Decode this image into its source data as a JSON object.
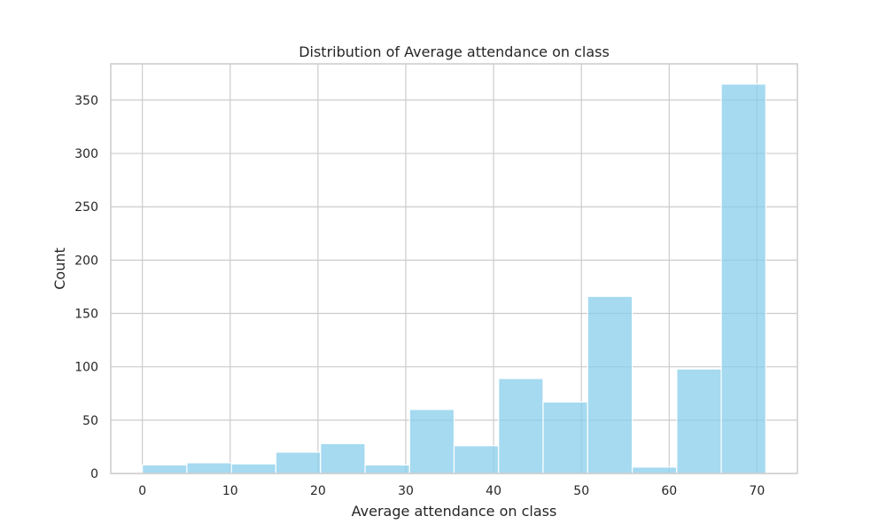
{
  "chart_data": {
    "type": "bar",
    "title": "Distribution of Average attendance on class",
    "xlabel": "Average attendance on class",
    "ylabel": "Count",
    "bar_color": "#87ceeb",
    "grid": true,
    "xlim": [
      -3.6,
      74.6
    ],
    "ylim": [
      0,
      384
    ],
    "x_ticks": [
      0,
      10,
      20,
      30,
      40,
      50,
      60,
      70
    ],
    "y_ticks": [
      0,
      50,
      100,
      150,
      200,
      250,
      300,
      350
    ],
    "bins": [
      {
        "start": 0.0,
        "end": 5.07,
        "count": 8
      },
      {
        "start": 5.07,
        "end": 10.14,
        "count": 10
      },
      {
        "start": 10.14,
        "end": 15.21,
        "count": 9
      },
      {
        "start": 15.21,
        "end": 20.29,
        "count": 20
      },
      {
        "start": 20.29,
        "end": 25.36,
        "count": 28
      },
      {
        "start": 25.36,
        "end": 30.43,
        "count": 8
      },
      {
        "start": 30.43,
        "end": 35.5,
        "count": 60
      },
      {
        "start": 35.5,
        "end": 40.57,
        "count": 26
      },
      {
        "start": 40.57,
        "end": 45.64,
        "count": 89
      },
      {
        "start": 45.64,
        "end": 50.71,
        "count": 67
      },
      {
        "start": 50.71,
        "end": 55.79,
        "count": 166
      },
      {
        "start": 55.79,
        "end": 60.86,
        "count": 6
      },
      {
        "start": 60.86,
        "end": 65.93,
        "count": 98
      },
      {
        "start": 65.93,
        "end": 71.0,
        "count": 365
      }
    ]
  }
}
